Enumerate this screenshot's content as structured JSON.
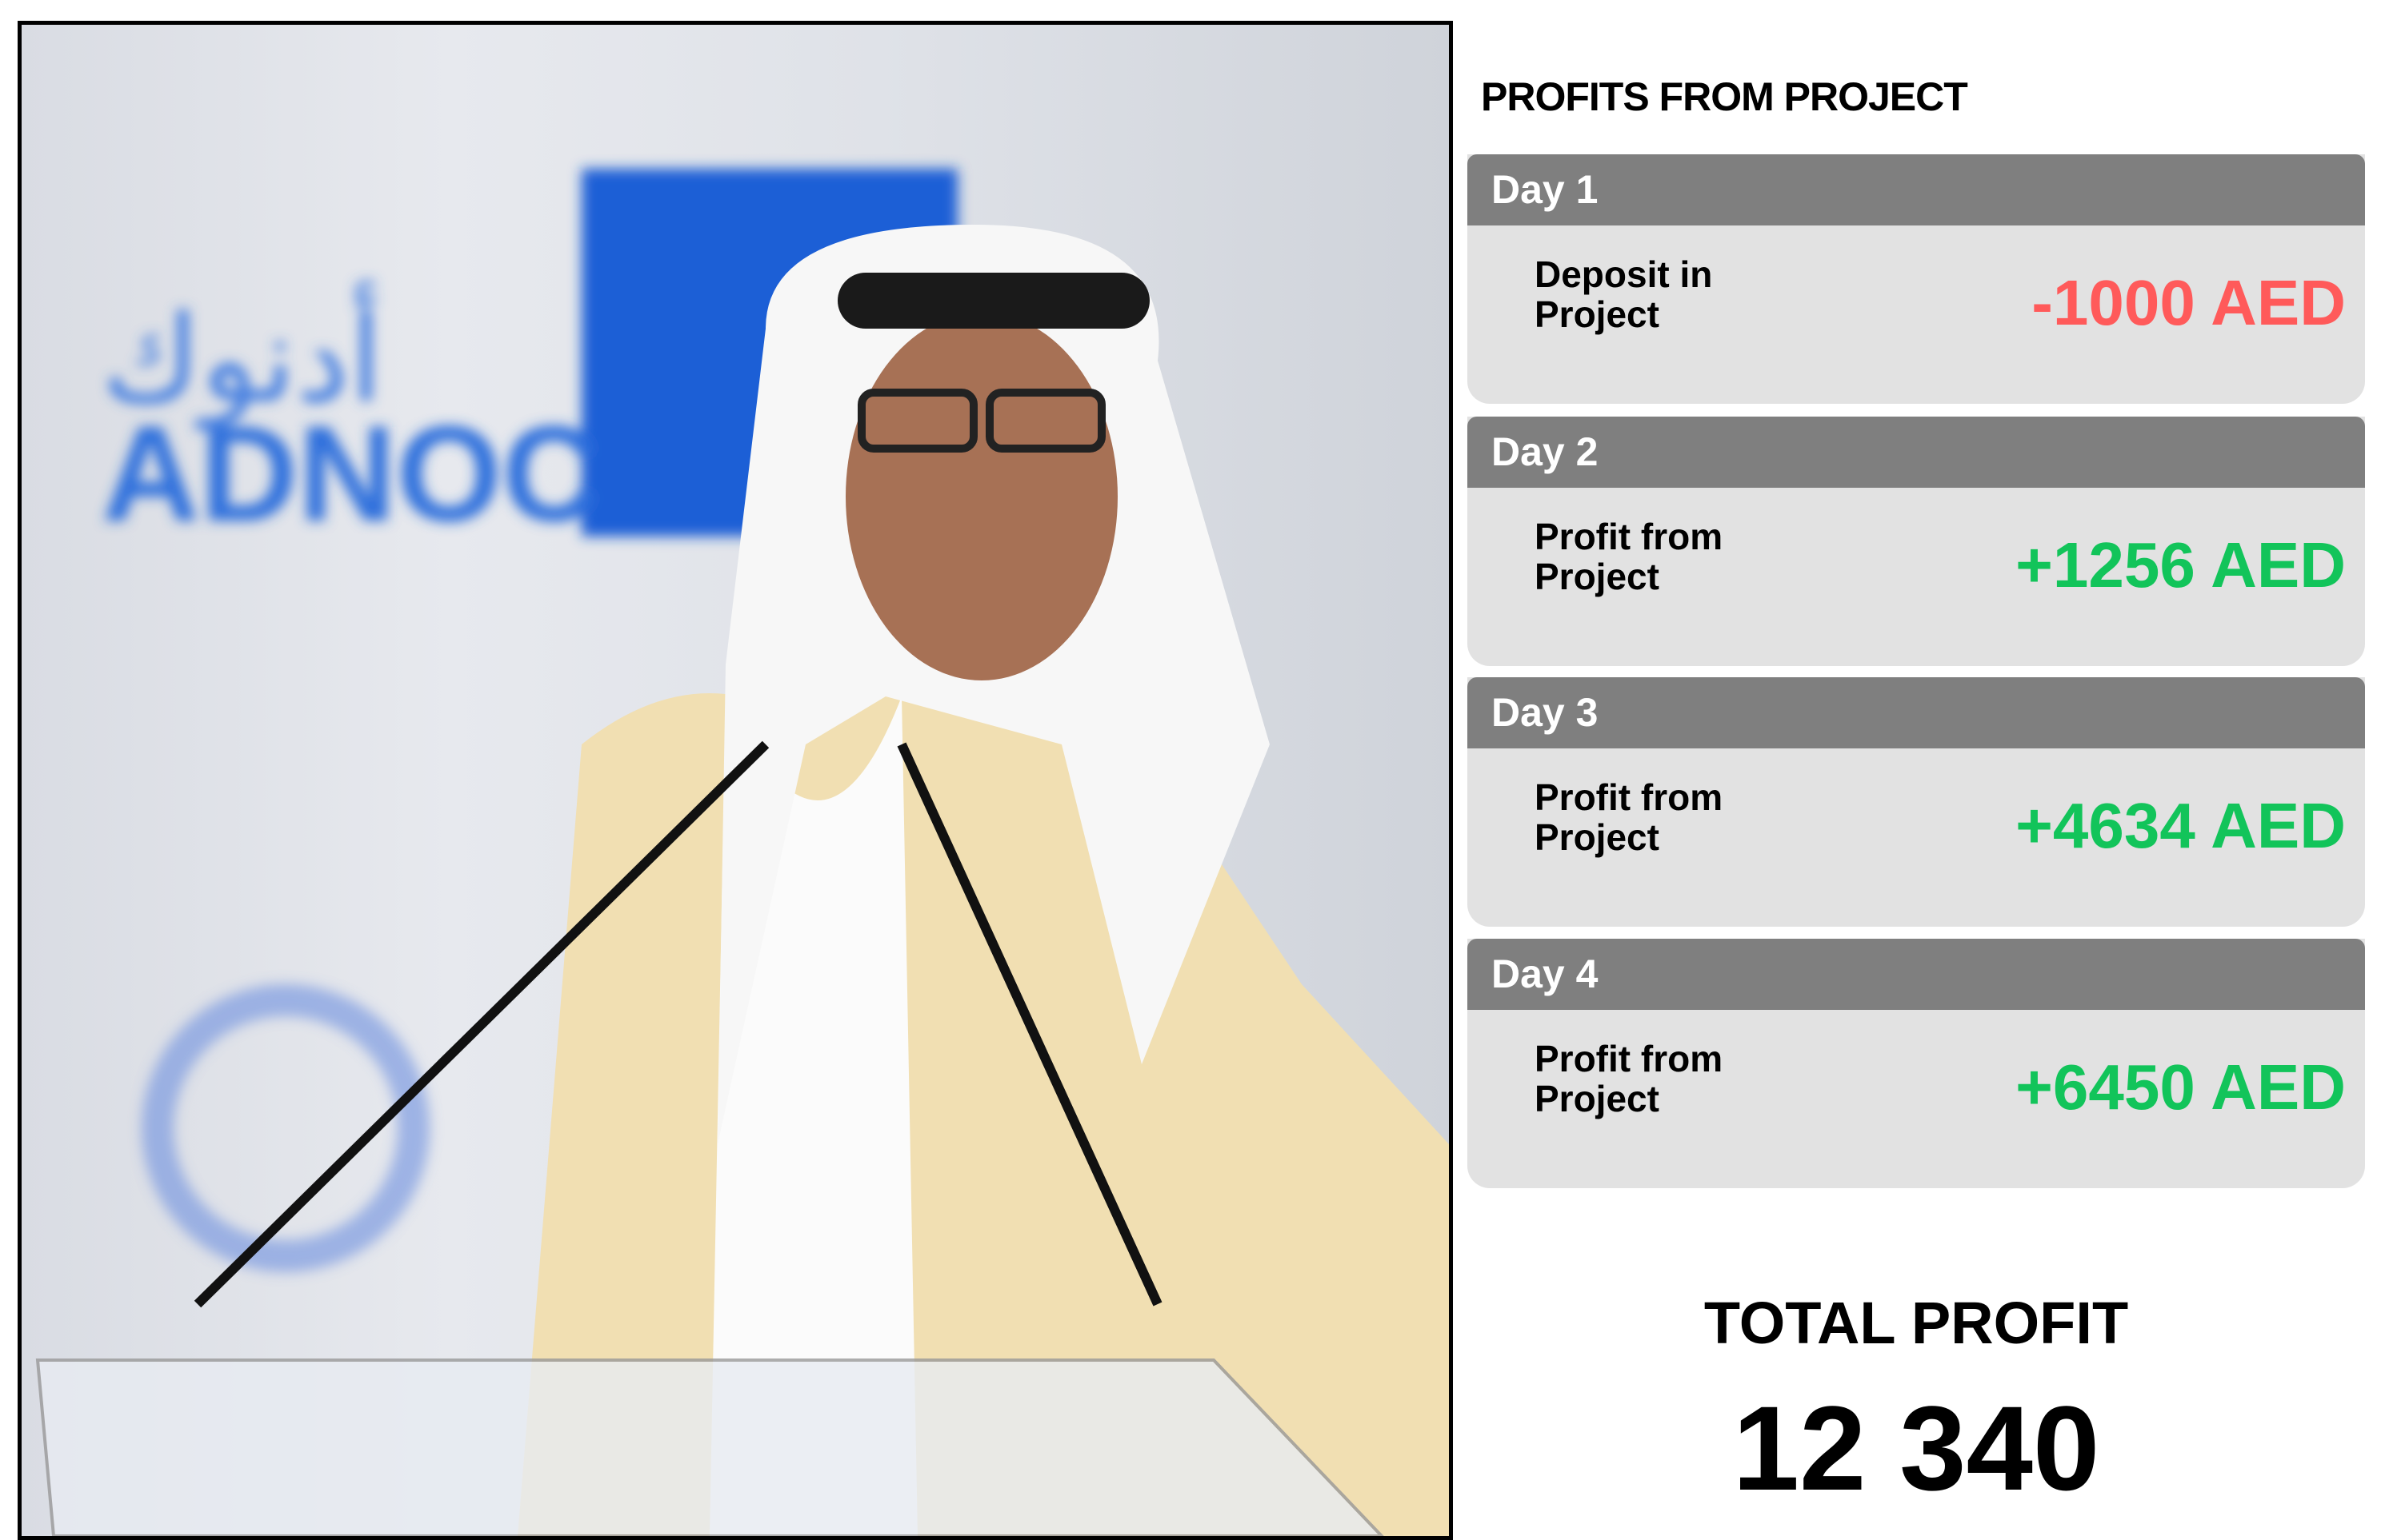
{
  "photo": {
    "logo_text": "ADNOC",
    "logo_arabic": "أدنوك",
    "logo_color": "#1f5fd6"
  },
  "panel": {
    "title": "PROFITS FROM PROJECT",
    "days": [
      {
        "day": "Day 1",
        "label": "Deposit in\nProject",
        "value": "-1000 AED",
        "color": "#ff5a5a"
      },
      {
        "day": "Day 2",
        "label": "Profit from\nProject",
        "value": "+1256 AED",
        "color": "#12c45a"
      },
      {
        "day": "Day 3",
        "label": "Profit from\nProject",
        "value": "+4634 AED",
        "color": "#12c45a"
      },
      {
        "day": "Day 4",
        "label": "Profit from\nProject",
        "value": "+6450 AED",
        "color": "#12c45a"
      }
    ],
    "total_label": "TOTAL PROFIT",
    "total_value": "12 340"
  }
}
